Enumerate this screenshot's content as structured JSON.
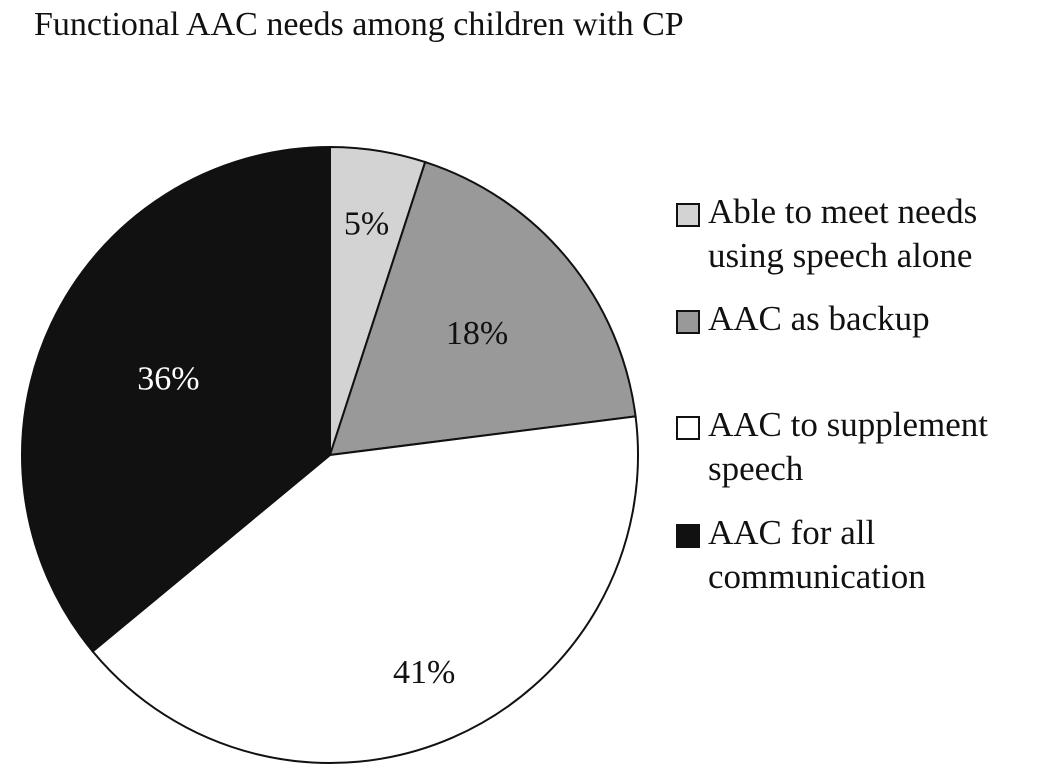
{
  "chart_data": {
    "type": "pie",
    "title": "Functional AAC needs among children with CP",
    "slices": [
      {
        "label": "Able to meet needs using speech alone",
        "value": 5,
        "value_label": "5%",
        "color": "#d3d3d3",
        "label_color": "#111111"
      },
      {
        "label": "AAC as backup",
        "value": 18,
        "value_label": "18%",
        "color": "#999999",
        "label_color": "#111111"
      },
      {
        "label": "AAC to supplement speech",
        "value": 41,
        "value_label": "41%",
        "color": "#ffffff",
        "label_color": "#111111"
      },
      {
        "label": "AAC for all communication",
        "value": 36,
        "value_label": "36%",
        "color": "#111111",
        "label_color": "#ffffff"
      }
    ],
    "legend_position": "right"
  }
}
